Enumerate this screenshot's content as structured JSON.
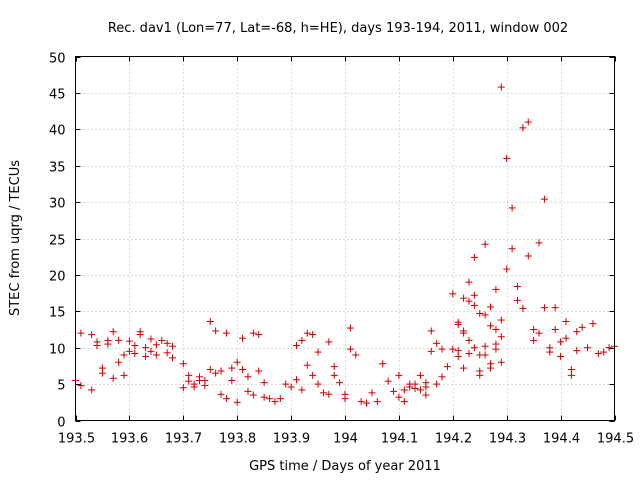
{
  "chart_data": {
    "type": "scatter",
    "title": "Rec. dav1 (Lon=77, Lat=-68, h=HE), days 193-194, 2011, window 002",
    "xlabel": "GPS time / Days of year 2011",
    "ylabel": "STEC from uqrg / TECUs",
    "xlim": [
      193.5,
      194.5
    ],
    "ylim": [
      0,
      50
    ],
    "xticks": [
      193.5,
      193.6,
      193.7,
      193.8,
      193.9,
      194.0,
      194.1,
      194.2,
      194.3,
      194.4,
      194.5
    ],
    "xtick_labels": [
      "193.5",
      "193.6",
      "193.7",
      "193.8",
      "193.9",
      "194",
      "194.1",
      "194.2",
      "194.3",
      "194.4",
      "194.5"
    ],
    "yticks": [
      0,
      5,
      10,
      15,
      20,
      25,
      30,
      35,
      40,
      45,
      50
    ],
    "ytick_labels": [
      "0",
      "5",
      "10",
      "15",
      "20",
      "25",
      "30",
      "35",
      "40",
      "45",
      "50"
    ],
    "grid": true,
    "marker": "+",
    "color": "#cc0000",
    "series": [
      {
        "name": "STEC",
        "points": [
          [
            193.5,
            5.5
          ],
          [
            193.51,
            4.8
          ],
          [
            193.51,
            12.0
          ],
          [
            193.53,
            11.8
          ],
          [
            193.53,
            4.2
          ],
          [
            193.54,
            10.3
          ],
          [
            193.54,
            10.8
          ],
          [
            193.55,
            7.2
          ],
          [
            193.55,
            6.5
          ],
          [
            193.56,
            11.0
          ],
          [
            193.56,
            10.5
          ],
          [
            193.57,
            12.2
          ],
          [
            193.57,
            5.8
          ],
          [
            193.58,
            11.0
          ],
          [
            193.58,
            8.0
          ],
          [
            193.59,
            6.2
          ],
          [
            193.59,
            9.0
          ],
          [
            193.6,
            10.9
          ],
          [
            193.6,
            9.5
          ],
          [
            193.61,
            10.3
          ],
          [
            193.61,
            9.2
          ],
          [
            193.62,
            11.8
          ],
          [
            193.62,
            12.2
          ],
          [
            193.63,
            10.0
          ],
          [
            193.63,
            8.8
          ],
          [
            193.64,
            11.2
          ],
          [
            193.64,
            9.5
          ],
          [
            193.65,
            10.4
          ],
          [
            193.65,
            9.0
          ],
          [
            193.66,
            11.0
          ],
          [
            193.67,
            10.6
          ],
          [
            193.67,
            9.3
          ],
          [
            193.68,
            10.2
          ],
          [
            193.68,
            8.6
          ],
          [
            193.7,
            7.8
          ],
          [
            193.7,
            4.5
          ],
          [
            193.71,
            6.2
          ],
          [
            193.71,
            5.4
          ],
          [
            193.72,
            5.0
          ],
          [
            193.72,
            4.6
          ],
          [
            193.73,
            6.0
          ],
          [
            193.73,
            5.5
          ],
          [
            193.74,
            4.8
          ],
          [
            193.74,
            5.5
          ],
          [
            193.75,
            13.6
          ],
          [
            193.75,
            7.0
          ],
          [
            193.76,
            12.3
          ],
          [
            193.76,
            6.5
          ],
          [
            193.77,
            3.6
          ],
          [
            193.77,
            6.8
          ],
          [
            193.78,
            12.0
          ],
          [
            193.78,
            3.0
          ],
          [
            193.79,
            7.2
          ],
          [
            193.79,
            5.5
          ],
          [
            193.8,
            2.5
          ],
          [
            193.8,
            8.0
          ],
          [
            193.81,
            11.3
          ],
          [
            193.81,
            7.0
          ],
          [
            193.82,
            4.0
          ],
          [
            193.82,
            6.0
          ],
          [
            193.83,
            12.0
          ],
          [
            193.83,
            3.5
          ],
          [
            193.84,
            11.8
          ],
          [
            193.84,
            6.8
          ],
          [
            193.85,
            5.2
          ],
          [
            193.85,
            3.2
          ],
          [
            193.86,
            3.0
          ],
          [
            193.87,
            2.6
          ],
          [
            193.88,
            3.0
          ],
          [
            193.89,
            5.0
          ],
          [
            193.9,
            4.6
          ],
          [
            193.91,
            5.6
          ],
          [
            193.91,
            10.3
          ],
          [
            193.92,
            11.0
          ],
          [
            193.92,
            4.2
          ],
          [
            193.93,
            12.0
          ],
          [
            193.93,
            7.6
          ],
          [
            193.94,
            11.8
          ],
          [
            193.94,
            6.2
          ],
          [
            193.95,
            5.0
          ],
          [
            193.95,
            9.4
          ],
          [
            193.96,
            3.8
          ],
          [
            193.97,
            3.6
          ],
          [
            193.97,
            10.8
          ],
          [
            193.98,
            7.4
          ],
          [
            193.98,
            6.2
          ],
          [
            193.99,
            5.2
          ],
          [
            194.0,
            3.0
          ],
          [
            194.0,
            3.6
          ],
          [
            194.01,
            12.7
          ],
          [
            194.01,
            9.8
          ],
          [
            194.02,
            9.0
          ],
          [
            194.03,
            2.6
          ],
          [
            194.04,
            2.4
          ],
          [
            194.05,
            3.8
          ],
          [
            194.06,
            2.6
          ],
          [
            194.07,
            7.8
          ],
          [
            194.08,
            5.4
          ],
          [
            194.09,
            4.0
          ],
          [
            194.1,
            6.2
          ],
          [
            194.1,
            3.2
          ],
          [
            194.11,
            4.2
          ],
          [
            194.11,
            2.6
          ],
          [
            194.12,
            4.6
          ],
          [
            194.13,
            5.0
          ],
          [
            194.14,
            6.2
          ],
          [
            194.15,
            4.6
          ],
          [
            194.15,
            3.5
          ],
          [
            194.12,
            5.0
          ],
          [
            194.13,
            4.4
          ],
          [
            194.14,
            4.2
          ],
          [
            194.15,
            5.2
          ],
          [
            194.16,
            12.3
          ],
          [
            194.16,
            9.5
          ],
          [
            194.17,
            10.6
          ],
          [
            194.17,
            5.0
          ],
          [
            194.18,
            9.8
          ],
          [
            194.18,
            6.0
          ],
          [
            194.19,
            7.4
          ],
          [
            194.2,
            17.4
          ],
          [
            194.2,
            9.8
          ],
          [
            194.21,
            13.5
          ],
          [
            194.21,
            8.8
          ],
          [
            194.22,
            7.2
          ],
          [
            194.22,
            12.3
          ],
          [
            194.23,
            19.0
          ],
          [
            194.23,
            11.0
          ],
          [
            194.24,
            15.8
          ],
          [
            194.24,
            10.0
          ],
          [
            194.25,
            14.7
          ],
          [
            194.25,
            6.8
          ],
          [
            194.26,
            24.2
          ],
          [
            194.26,
            9.0
          ],
          [
            194.27,
            13.0
          ],
          [
            194.27,
            7.8
          ],
          [
            194.28,
            18.0
          ],
          [
            194.28,
            10.5
          ],
          [
            194.29,
            11.5
          ],
          [
            194.29,
            8.0
          ],
          [
            194.21,
            13.2
          ],
          [
            194.21,
            9.6
          ],
          [
            194.22,
            16.8
          ],
          [
            194.22,
            12.0
          ],
          [
            194.23,
            16.4
          ],
          [
            194.23,
            9.2
          ],
          [
            194.24,
            22.4
          ],
          [
            194.24,
            17.2
          ],
          [
            194.25,
            9.0
          ],
          [
            194.25,
            6.2
          ],
          [
            194.26,
            10.2
          ],
          [
            194.26,
            14.5
          ],
          [
            194.27,
            15.6
          ],
          [
            194.27,
            7.2
          ],
          [
            194.28,
            12.5
          ],
          [
            194.28,
            9.8
          ],
          [
            194.29,
            45.8
          ],
          [
            194.29,
            13.8
          ],
          [
            194.3,
            36.0
          ],
          [
            194.3,
            20.8
          ],
          [
            194.31,
            29.2
          ],
          [
            194.31,
            23.6
          ],
          [
            194.32,
            18.4
          ],
          [
            194.32,
            16.5
          ],
          [
            194.33,
            40.2
          ],
          [
            194.33,
            15.4
          ],
          [
            194.34,
            41.0
          ],
          [
            194.34,
            22.6
          ],
          [
            194.35,
            12.5
          ],
          [
            194.35,
            11.0
          ],
          [
            194.36,
            24.4
          ],
          [
            194.36,
            12.0
          ],
          [
            194.37,
            30.4
          ],
          [
            194.37,
            15.5
          ],
          [
            194.38,
            10.0
          ],
          [
            194.38,
            9.4
          ],
          [
            194.39,
            15.5
          ],
          [
            194.39,
            12.5
          ],
          [
            194.4,
            10.8
          ],
          [
            194.4,
            8.8
          ],
          [
            194.41,
            13.6
          ],
          [
            194.41,
            11.3
          ],
          [
            194.42,
            7.0
          ],
          [
            194.42,
            6.2
          ],
          [
            194.43,
            12.2
          ],
          [
            194.43,
            9.6
          ],
          [
            194.44,
            12.8
          ],
          [
            194.45,
            10.0
          ],
          [
            194.46,
            13.3
          ],
          [
            194.47,
            9.2
          ],
          [
            194.48,
            9.4
          ],
          [
            194.49,
            10.0
          ],
          [
            194.5,
            10.2
          ]
        ]
      }
    ]
  }
}
